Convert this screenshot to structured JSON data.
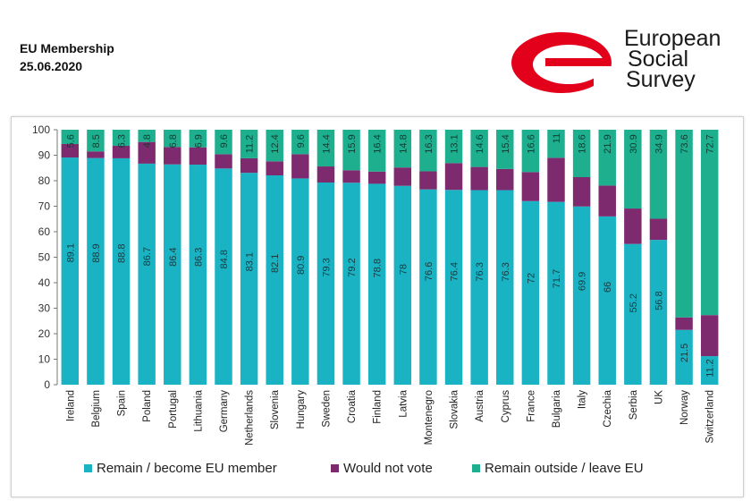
{
  "header": {
    "title": "EU Membership",
    "date": "25.06.2020"
  },
  "logo": {
    "line1": "European",
    "line2": "Social",
    "line3": "Survey",
    "color": "#e2001a"
  },
  "chart_data": {
    "type": "bar",
    "stacked": true,
    "title": "",
    "xlabel": "",
    "ylabel": "",
    "ylim": [
      0,
      100
    ],
    "yticks": [
      0,
      10,
      20,
      30,
      40,
      50,
      60,
      70,
      80,
      90,
      100
    ],
    "grid": false,
    "legend_position": "bottom",
    "categories": [
      "Ireland",
      "Belgium",
      "Spain",
      "Poland",
      "Portugal",
      "Lithuania",
      "Germany",
      "Netherlands",
      "Slovenia",
      "Hungary",
      "Sweden",
      "Croatia",
      "Finland",
      "Latvia",
      "Montenegro",
      "Slovakia",
      "Austria",
      "Cyprus",
      "France",
      "Bulgaria",
      "Italy",
      "Czechia",
      "Serbia",
      "UK",
      "Norway",
      "Switzerland"
    ],
    "series": [
      {
        "name": "Remain / become EU member",
        "color": "#19b3c4",
        "values": [
          89.1,
          88.9,
          88.8,
          86.7,
          86.4,
          86.3,
          84.8,
          83.1,
          82.1,
          80.9,
          79.3,
          79.2,
          78.8,
          78,
          76.6,
          76.4,
          76.3,
          76.3,
          72,
          71.7,
          69.9,
          66,
          55.2,
          56.8,
          21.5,
          11.2
        ],
        "labels": [
          "89.1",
          "88.9",
          "88.8",
          "86.7",
          "86.4",
          "86.3",
          "84.8",
          "83.1",
          "82.1",
          "80.9",
          "79.3",
          "79.2",
          "78.8",
          "78",
          "76.6",
          "76.4",
          "76.3",
          "76.3",
          "72",
          "71.7",
          "69.9",
          "66",
          "55.2",
          "56.8",
          "21.5",
          "11.2"
        ]
      },
      {
        "name": "Would not vote",
        "color": "#7d2a6e",
        "values": [
          5.3,
          2.6,
          4.9,
          8.5,
          6.8,
          6.8,
          5.6,
          5.7,
          5.5,
          9.5,
          6.3,
          4.9,
          4.8,
          7.2,
          7.1,
          10.5,
          9.1,
          8.3,
          11.4,
          17.3,
          11.5,
          12.1,
          13.9,
          8.3,
          4.9,
          16.1
        ],
        "labels": []
      },
      {
        "name": "Remain outside / leave EU",
        "color": "#1daf8e",
        "values": [
          5.6,
          8.5,
          6.3,
          4.8,
          6.8,
          6.9,
          9.6,
          11.2,
          12.4,
          9.6,
          14.4,
          15.9,
          16.4,
          14.8,
          16.3,
          13.1,
          14.6,
          15.4,
          16.6,
          11,
          18.6,
          21.9,
          30.9,
          34.9,
          73.6,
          72.7
        ],
        "labels": [
          "5.6",
          "8.5",
          "6.3",
          "4.8",
          "6.8",
          "6.9",
          "9.6",
          "11.2",
          "12.4",
          "9.6",
          "14.4",
          "15.9",
          "16.4",
          "14.8",
          "16.3",
          "13.1",
          "14.6",
          "15.4",
          "16.6",
          "11",
          "18.6",
          "21.9",
          "30.9",
          "34.9",
          "73.6",
          "72.7"
        ]
      }
    ]
  }
}
